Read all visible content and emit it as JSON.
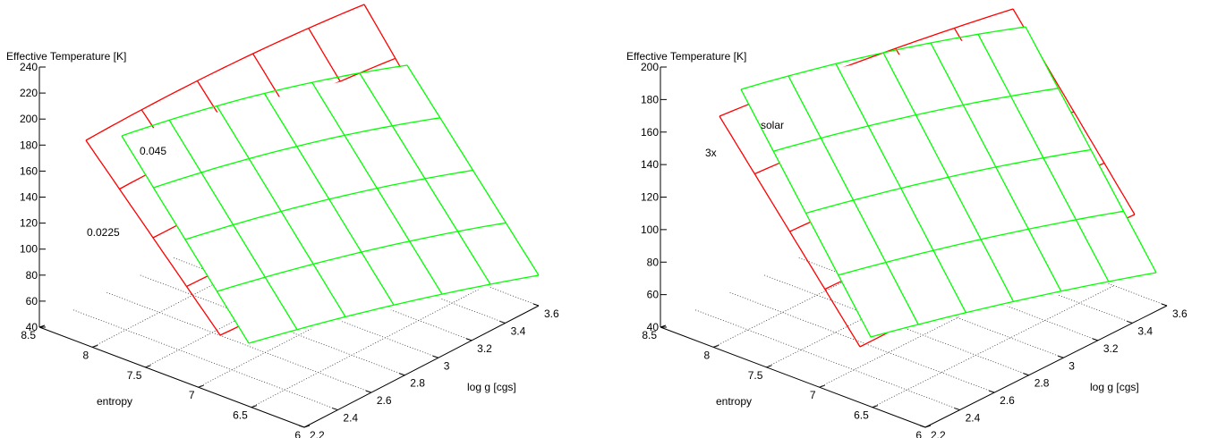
{
  "chart_data": [
    {
      "type": "surface",
      "zlabel": "Effective Temperature [K]",
      "xlabel": "entropy",
      "ylabel": "log g [cgs]",
      "zlim": [
        40,
        240
      ],
      "z_ticks": [
        "40",
        "60",
        "80",
        "100",
        "120",
        "140",
        "160",
        "180",
        "200",
        "220",
        "240"
      ],
      "x_ticks": [
        "8.5",
        "8",
        "7.5",
        "7",
        "6.5",
        "6"
      ],
      "y_ticks": [
        "2.2",
        "2.4",
        "2.6",
        "2.8",
        "3",
        "3.2",
        "3.4",
        "3.6"
      ],
      "surface_labels": [
        "0.0225",
        "0.045"
      ],
      "series": [
        {
          "name": "0.0225",
          "color": "#ff0000"
        },
        {
          "name": "0.045",
          "color": "#00ff00"
        }
      ]
    },
    {
      "type": "surface",
      "zlabel": "Effective Temperature [K]",
      "xlabel": "entropy",
      "ylabel": "log g [cgs]",
      "zlim": [
        40,
        200
      ],
      "z_ticks": [
        "40",
        "60",
        "80",
        "100",
        "120",
        "140",
        "160",
        "180",
        "200"
      ],
      "x_ticks": [
        "8.5",
        "8",
        "7.5",
        "7",
        "6.5",
        "6"
      ],
      "y_ticks": [
        "2.2",
        "2.4",
        "2.6",
        "2.8",
        "3",
        "3.2",
        "3.4",
        "3.6"
      ],
      "surface_labels": [
        "3x",
        "solar"
      ],
      "series": [
        {
          "name": "3x",
          "color": "#ff0000"
        },
        {
          "name": "solar",
          "color": "#00ff00"
        }
      ]
    }
  ]
}
